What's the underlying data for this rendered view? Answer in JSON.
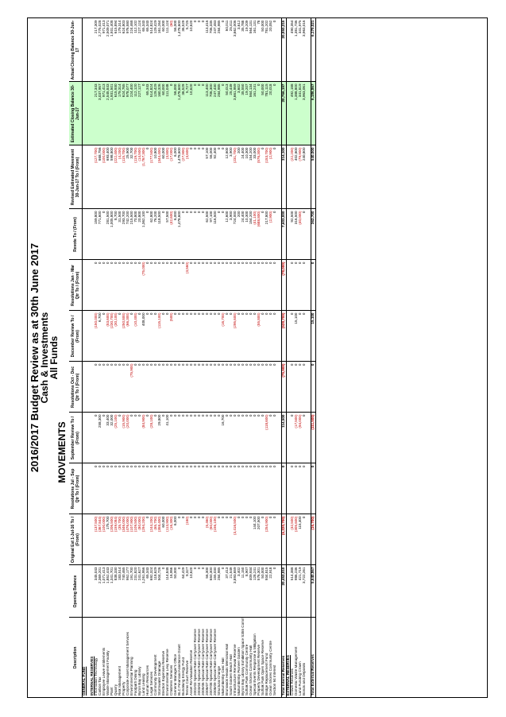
{
  "title": "2016/2017 Budget Review as at 30th June 2017",
  "subtitle1": "Cash & Investments",
  "subtitle2": "All Funds",
  "movements_label": "MOVEMENTS",
  "page_number": "8",
  "headers": {
    "description": "Description",
    "opening": "Opening Balance",
    "original": "Original Est 1-Jul-16 To / (From)",
    "res_q1": "Resolutions Jul - Sep Qtr To / (From)",
    "sep_review": "September Review To / (From)",
    "res_q2": "Resolutions Oct - Dec Qtr To / (From)",
    "dec_review": "December Review To / (From)",
    "res_q3": "Resolutions Jan - Mar Qtr To / (From)",
    "revote": "Revote To / (From)",
    "revised": "Revised Estimated Movement 30-Jun-17 To / (From)",
    "est_closing": "Estimated Closing Balance 30-Jun-17",
    "actual": "Actual Closing Balance 30-Jun-17"
  },
  "rows": [
    {
      "type": "sec",
      "cells": [
        "GENERAL FUND",
        "",
        "",
        "",
        "",
        "",
        "",
        "",
        "",
        "",
        "",
        ""
      ]
    },
    {
      "type": "blank",
      "cells": [
        "",
        "",
        "",
        "",
        "",
        "",
        "",
        "",
        "",
        "",
        "",
        ""
      ]
    },
    {
      "type": "sec",
      "cells": [
        "INTERNAL RESERVES",
        "",
        "",
        "",
        "",
        "",
        "",
        "",
        "",
        "",
        "",
        ""
      ]
    },
    {
      "cells": [
        "Information Technology",
        "345,043",
        "(137,500)",
        "0",
        "0",
        "0",
        "(150,000)",
        "0",
        "159,800",
        "(127,700)",
        "217,343",
        "217,309"
      ]
    },
    {
      "cells": [
        "Carbon Tax",
        "2,369,201",
        "(367,844)",
        "0",
        "258,300",
        "0",
        "6,700",
        "0",
        "771,600",
        "668,756",
        "3,037,957",
        "2,775,028"
      ]
    },
    {
      "cells": [
        "Employee Leave entitlements",
        "1,071,413",
        "(100,000)",
        "0",
        "0",
        "0",
        "0",
        "0",
        "0",
        "(100,000)",
        "971,413",
        "971,413"
      ]
    },
    {
      "cells": [
        "Waste Management Facility",
        "1,852,443",
        "175,700",
        "0",
        "33,400",
        "0",
        "(53,600)",
        "0",
        "281,500",
        "693,400",
        "2,545,843",
        "2,509,071"
      ]
    },
    {
      "cells": [
        "Plant",
        "1,341,701",
        "(206,500)",
        "0",
        "32,000",
        "0",
        "(230,700)",
        "0",
        "1,005,800",
        "598,800",
        "1,931,501",
        "1,931,408"
      ]
    },
    {
      "cells": [
        "Quarry",
        "838,330",
        "(159,084)",
        "0",
        "(25,100)",
        "0",
        "(30,100)",
        "0",
        "8,700",
        "(222,400)",
        "615,930",
        "615,894"
      ]
    },
    {
      "cells": [
        "Risk Management",
        "183,514",
        "(35,700)",
        "0",
        "0",
        "0",
        "0",
        "0",
        "31,500",
        "(4,200)",
        "179,314",
        "179,314"
      ]
    },
    {
      "cells": [
        "Property",
        "740,465",
        "(346,000)",
        "0",
        "(15,900)",
        "0",
        "(250,800)",
        "0",
        "293,700",
        "(115,700)",
        "624,765",
        "624,803"
      ]
    },
    {
      "cells": [
        "Corporate Asset Management Services",
        "952,177",
        "(476,000)",
        "0",
        "(20,000)",
        "0",
        "(66,300)",
        "0",
        "742,200",
        "25,900",
        "978,077",
        "976,580"
      ]
    },
    {
      "cells": [
        "Environmental Planning",
        "191,700",
        "(107,900)",
        "0",
        "0",
        "(75,900)",
        "0",
        "0",
        "215,500",
        "32,700",
        "224,400",
        "224,468"
      ]
    },
    {
      "cells": [
        "Footpath Dining",
        "231,820",
        "(109,500)",
        "0",
        "0",
        "0",
        "(10,400)",
        "0",
        "70,800",
        "(119,700)",
        "112,120",
        "112,102"
      ]
    },
    {
      "cells": [
        "Byron Bay Library",
        "241,627",
        "(80,000)",
        "0",
        "0",
        "0",
        "0",
        "0",
        "20,800",
        "(14,500)",
        "227,127",
        "227,124"
      ]
    },
    {
      "cells": [
        "Land Leasing",
        "1,261,956",
        "(294,200)",
        "0",
        "(84,900)",
        "0",
        "408,000",
        "(75,000)",
        "1,362,100",
        "(1,767,300)",
        "0",
        "65,343"
      ]
    },
    {
      "cells": [
        "Human Resources",
        "65,343",
        "0",
        "0",
        "0",
        "0",
        "0",
        "0",
        "0",
        "0",
        "65,343",
        "65,343"
      ]
    },
    {
      "cells": [
        "Legal Services",
        "692,324",
        "(244,200)",
        "0",
        "(28,100)",
        "0",
        "0",
        "0",
        "62,800",
        "(177,500)",
        "514,824",
        "514,824"
      ]
    },
    {
      "cells": [
        "Community Development",
        "118,629",
        "(65,700)",
        "0",
        "0",
        "0",
        "0",
        "0",
        "76,200",
        "10,800",
        "129,429",
        "129,429"
      ]
    },
    {
      "cells": [
        "Stormwater Drainage",
        "504,726",
        "(358,400)",
        "0",
        "29,800",
        "0",
        "(115,100)",
        "0",
        "118,500",
        "(344,400)",
        "160,326",
        "161,264"
      ]
    },
    {
      "cells": [
        "Election Expenses Reserve",
        "0",
        "60,000",
        "0",
        "0",
        "0",
        "0",
        "0",
        "0",
        "60,000",
        "60,000",
        "60,000"
      ]
    },
    {
      "cells": [
        "Environmental Levy Reserve",
        "114,848",
        "(113,900)",
        "0",
        "41,100",
        "0",
        "0",
        "0",
        "57,500",
        "(3,800)",
        "111,048",
        "111,124"
      ]
    },
    {
      "cells": [
        "Childrens Services",
        "16,956",
        "(16,300)",
        "0",
        "0",
        "0",
        "(500)",
        "0",
        "(42,600)",
        "(17,000)",
        "0",
        "(60)"
      ]
    },
    {
      "cells": [
        "General Manager's Office",
        "50,000",
        "6,000",
        "0",
        "0",
        "0",
        "0",
        "0",
        "6,000",
        "6,000",
        "56,000",
        "56,000"
      ]
    },
    {
      "cells": [
        "BLC Financial Assistance Grant",
        "0",
        "0",
        "0",
        "0",
        "0",
        "0",
        "0",
        "1,478,600",
        "1,478,600",
        "1,478,600",
        "1,478,600"
      ]
    },
    {
      "cells": [
        "Bundilung Energy Fund",
        "64,429",
        "0",
        "0",
        "0",
        "0",
        "0",
        "0",
        "0",
        "(27,900)",
        "36,529",
        "36,529"
      ]
    },
    {
      "cells": [
        "Tennis Court Reserve",
        "9,327",
        "(160)",
        "0",
        "0",
        "0",
        "0",
        "(3,560)",
        "0",
        "(3,600)",
        "5,727",
        "5,725"
      ]
    },
    {
      "cells": [
        "Asset Re-Valuation Reserve",
        "10,620",
        "0",
        "0",
        "0",
        "0",
        "0",
        "0",
        "0",
        "0",
        "10,620",
        "10,620"
      ]
    },
    {
      "cells": [
        "2002/03 Special Rate Carryover Reserve",
        "0",
        "0",
        "0",
        "0",
        "0",
        "0",
        "0",
        "0",
        "0",
        "0",
        "0"
      ]
    },
    {
      "cells": [
        "2003/04 Special Rate Carryover Reserve",
        "0",
        "0",
        "0",
        "0",
        "0",
        "0",
        "0",
        "0",
        "0",
        "0",
        "0"
      ]
    },
    {
      "cells": [
        "2005/06 Special Rate Carryover Reserve",
        "0",
        "0",
        "0",
        "0",
        "0",
        "0",
        "0",
        "0",
        "0",
        "0",
        "0"
      ]
    },
    {
      "cells": [
        "2006/07 Special Rate Carryover Reserve",
        "56,300",
        "(5,460)",
        "0",
        "0",
        "0",
        "0",
        "0",
        "62,500",
        "57,100",
        "113,400",
        "113,416"
      ]
    },
    {
      "cells": [
        "2007/08 Special Rate Carryover Reserve",
        "650,300",
        "(60,000)",
        "0",
        "0",
        "0",
        "0",
        "0",
        "97,100",
        "56,000",
        "706,300",
        "706,335"
      ]
    },
    {
      "cells": [
        "2008/09 Special Rate Carryover Reserve",
        "155,030",
        "(156,100)",
        "0",
        "0",
        "0",
        "0",
        "0",
        "116,500",
        "92,400",
        "247,430",
        "247,483"
      ]
    },
    {
      "cells": [
        "Structural Change",
        "284,985",
        "0",
        "0",
        "0",
        "0",
        "0",
        "0",
        "0",
        "0",
        "284,985",
        "284,985"
      ]
    },
    {
      "cells": [
        "Mullumbimby Civic Hall",
        "0",
        "0",
        "0",
        "16,700",
        "0",
        "(16,700)",
        "0",
        "0",
        "0",
        "0",
        "0"
      ]
    },
    {
      "cells": [
        "Brunswick Heads Memorial Hall",
        "37,413",
        "0",
        "0",
        "0",
        "0",
        "0",
        "0",
        "12,600",
        "12,600",
        "50,013",
        "50,011"
      ]
    },
    {
      "cells": [
        "South Golden Beach Hall",
        "21,549",
        "0",
        "0",
        "0",
        "0",
        "0",
        "0",
        "3,900",
        "3,900",
        "25,449",
        "25,411"
      ]
    },
    {
      "cells": [
        "Infrastructure Renewal Reserve",
        "3,893,659",
        "(3,416,500)",
        "0",
        "0",
        "0",
        "(295,600)",
        "0",
        "724,000",
        "(231,700)",
        "3,661,959",
        "3,662,006"
      ]
    },
    {
      "cells": [
        "Mullumbimby Pioneer Garden",
        "3,402",
        "0",
        "0",
        "0",
        "0",
        "0",
        "0",
        "200",
        "200",
        "3,602",
        "3,612"
      ]
    },
    {
      "cells": [
        "Byron Bay Library Exhibition Space S355 Committee",
        "11,150",
        "0",
        "0",
        "0",
        "0",
        "0",
        "0",
        "24,400",
        "24,400",
        "35,550",
        "35,788"
      ]
    },
    {
      "cells": [
        "Suffolk Park Community Centre",
        "8,907",
        "0",
        "0",
        "0",
        "0",
        "0",
        "0",
        "10,300",
        "10,300",
        "19,207",
        "19,209"
      ]
    },
    {
      "cells": [
        "Ocean Shores Community Hall",
        "409,934",
        "0",
        "0",
        "0",
        "0",
        "0",
        "0",
        "154,200",
        "154,200",
        "564,134",
        "564,131"
      ]
    },
    {
      "cells": [
        "Special Events Response & Mitigation",
        "128,241",
        "144,100",
        "0",
        "0",
        "0",
        "0",
        "0",
        "(41,100)",
        "33,000",
        "161,241",
        "161,131"
      ]
    },
    {
      "cells": [
        "Property Development Reserve",
        "576,301",
        "207,500",
        "0",
        "0",
        "0",
        "(55,800)",
        "0",
        "(688,800)",
        "(576,300)",
        "0",
        "78"
      ]
    },
    {
      "cells": [
        "Suffolk Park Open Space Reserve",
        "50,000",
        "0",
        "0",
        "0",
        "0",
        "0",
        "0",
        "0",
        "0",
        "50,000",
        "50,000"
      ]
    },
    {
      "cells": [
        "Bridge Replacement Fund",
        "934,815",
        "(254,900)",
        "0",
        "(118,600)",
        "0",
        "0",
        "0",
        "217,800",
        "(153,700)",
        "781,115",
        "781,202"
      ]
    },
    {
      "cells": [
        "Ocean Shores Community Centre",
        "22,918",
        "0",
        "0",
        "0",
        "0",
        "0",
        "0",
        "(2,900)",
        "(2,900)",
        "20,018",
        "20,052"
      ]
    },
    {
      "cells": [
        "Section 94 Interest",
        "0",
        "0",
        "0",
        "0",
        "0",
        "0",
        "0",
        "0",
        "0",
        "0",
        "0"
      ]
    },
    {
      "type": "blank",
      "cells": [
        "",
        "",
        "",
        "",
        "",
        "",
        "",
        "",
        "",
        "",
        "",
        ""
      ]
    },
    {
      "type": "tot",
      "cells": [
        "Total Internal Reserves",
        "20,452,010",
        "(6,220,700)",
        "0",
        "114,500",
        "(75,900)",
        "(528,700)",
        "(78,000)",
        "7,603,000",
        "314,100",
        "20,766,197",
        "20,850,215"
      ]
    },
    {
      "type": "sec",
      "cells": [
        "EXTERNAL RESERVES",
        "",
        "",
        "",
        "",
        "",
        "",
        "",
        "",
        "",
        "",
        ""
      ]
    },
    {
      "cells": [
        "Crown Reserves",
        "514,388",
        "(32,500)",
        "0",
        "0",
        "0",
        "0",
        "0",
        "92,500",
        "(22,200)",
        "492,188",
        "490,354"
      ]
    },
    {
      "cells": [
        "Domestic Waste Management",
        "986,236",
        "(305,600)",
        "0",
        "(17,500)",
        "0",
        "15,100",
        "0",
        "316,500",
        "402,600",
        "1,388,800",
        "1,381,736"
      ]
    },
    {
      "cells": [
        "Land Funding Crown",
        "421,719",
        "115,400",
        "0",
        "(94,000)",
        "0",
        "0",
        "0",
        "(40,000)",
        "(79,900)",
        "341,819",
        "341,975"
      ]
    },
    {
      "cells": [
        "Bonds and Deposits",
        "3,722,261",
        "0",
        "0",
        "0",
        "0",
        "0",
        "0",
        "0",
        "240,800",
        "3,963,061",
        "3,963,016"
      ]
    },
    {
      "type": "blank",
      "cells": [
        "",
        "",
        "",
        "",
        "",
        "",
        "",
        "",
        "",
        "",
        "",
        ""
      ]
    },
    {
      "type": "tot",
      "cells": [
        "Total External Reserves",
        "5,640,867",
        "(16,700)",
        "0",
        "(111,500)",
        "0",
        "15,100",
        "0",
        "362,700",
        "540,000",
        "6,186,867",
        "6,179,021"
      ]
    }
  ]
}
